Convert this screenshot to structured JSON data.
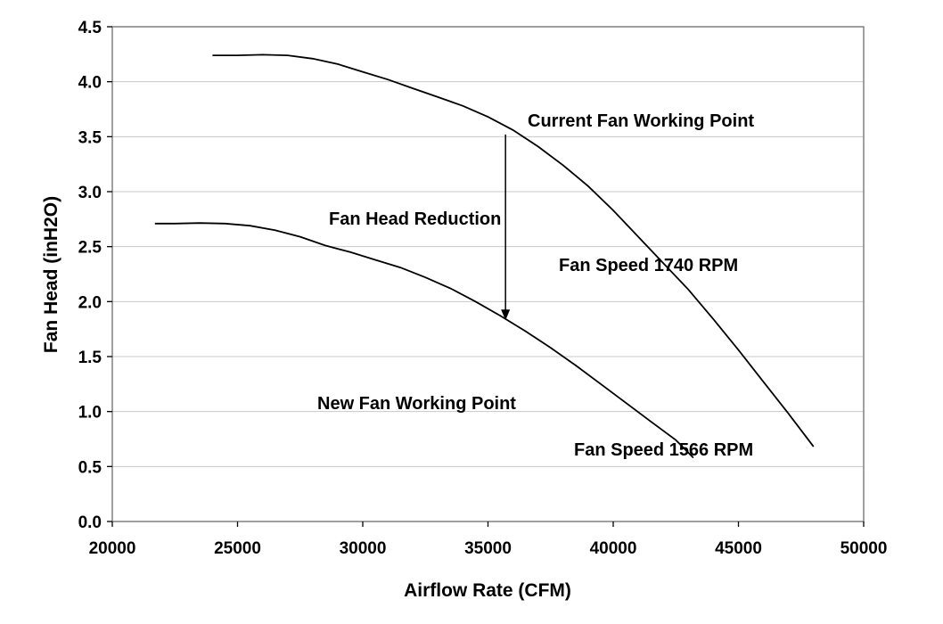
{
  "chart_data": {
    "type": "line",
    "title": "",
    "xlabel": "Airflow Rate (CFM)",
    "ylabel": "Fan Head (inH2O)",
    "xlim": [
      20000,
      50000
    ],
    "ylim": [
      0,
      4.5
    ],
    "xticks": [
      20000,
      25000,
      30000,
      35000,
      40000,
      45000,
      50000
    ],
    "yticks": [
      0.0,
      0.5,
      1.0,
      1.5,
      2.0,
      2.5,
      3.0,
      3.5,
      4.0,
      4.5
    ],
    "xtick_labels": [
      "20000",
      "25000",
      "30000",
      "35000",
      "40000",
      "45000",
      "50000"
    ],
    "ytick_labels": [
      "0.0",
      "0.5",
      "1.0",
      "1.5",
      "2.0",
      "2.5",
      "3.0",
      "3.5",
      "4.0",
      "4.5"
    ],
    "grid": "horizontal",
    "legend": "none",
    "series": [
      {
        "x": [
          24000,
          25000,
          26000,
          27000,
          28000,
          29000,
          30000,
          31000,
          32000,
          33000,
          34000,
          35000,
          36000,
          37000,
          38000,
          39000,
          40000,
          41000,
          42000,
          43000,
          44000,
          45000,
          46000,
          47000,
          48000
        ],
        "y": [
          4.24,
          4.24,
          4.245,
          4.24,
          4.21,
          4.16,
          4.09,
          4.02,
          3.94,
          3.86,
          3.78,
          3.68,
          3.56,
          3.41,
          3.24,
          3.05,
          2.83,
          2.59,
          2.35,
          2.11,
          1.84,
          1.56,
          1.27,
          0.98,
          0.68
        ]
      },
      {
        "x": [
          21700,
          22500,
          23500,
          24500,
          25500,
          26500,
          27500,
          28500,
          29500,
          30500,
          31500,
          32500,
          33500,
          34500,
          35500,
          36500,
          37500,
          38500,
          39500,
          40500,
          41500,
          42500,
          43200
        ],
        "y": [
          2.71,
          2.71,
          2.715,
          2.71,
          2.69,
          2.65,
          2.59,
          2.51,
          2.45,
          2.38,
          2.31,
          2.22,
          2.12,
          2.0,
          1.87,
          1.73,
          1.58,
          1.42,
          1.25,
          1.08,
          0.91,
          0.74,
          0.58
        ]
      }
    ],
    "annotations": [
      {
        "text": "Current Fan Working Point",
        "x": 35700,
        "y": 3.52
      },
      {
        "text": "New Fan Working Point",
        "x": 35700,
        "y": 1.83
      },
      {
        "text": "Fan Head Reduction"
      },
      {
        "text": "Fan Speed 1740 RPM"
      },
      {
        "text": "Fan Speed 1566 RPM"
      }
    ],
    "arrow": {
      "x": 35700,
      "from_y": 3.52,
      "to_y": 1.83
    }
  }
}
